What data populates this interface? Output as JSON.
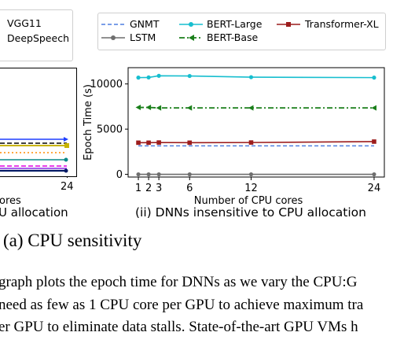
{
  "left_legend": {
    "entries": [
      "VGG11",
      "DeepSpeech"
    ]
  },
  "left_panel": {
    "xtick": "24",
    "xlabel_fragment": "ores",
    "caption_fragment": "U allocation"
  },
  "right_legend": {
    "entries": [
      {
        "label": "GNMT",
        "color": "#4f7fe0",
        "style": "dashed"
      },
      {
        "label": "LSTM",
        "color": "#6e6e6e",
        "style": "solid-dot"
      },
      {
        "label": "BERT-Large",
        "color": "#17becf",
        "style": "solid-dot"
      },
      {
        "label": "BERT-Base",
        "color": "#1a7f1a",
        "style": "dashdot-triangle"
      },
      {
        "label": "Transformer-XL",
        "color": "#9c1c1c",
        "style": "solid-square"
      }
    ]
  },
  "chart_data": {
    "type": "line",
    "title": "",
    "xlabel": "Number of CPU cores",
    "ylabel": "Epoch Time (s)",
    "x": [
      1,
      2,
      3,
      6,
      12,
      24
    ],
    "xticks": [
      1,
      2,
      3,
      6,
      12,
      24
    ],
    "xlim": [
      0,
      25
    ],
    "ylim": [
      -300,
      11800
    ],
    "yticks": [
      0,
      5000,
      10000
    ],
    "grid": false,
    "series": [
      {
        "name": "GNMT",
        "color": "#4f7fe0",
        "values": [
          3150,
          3150,
          3150,
          3150,
          3150,
          3150
        ]
      },
      {
        "name": "LSTM",
        "color": "#6e6e6e",
        "values": [
          0,
          0,
          0,
          0,
          0,
          0
        ]
      },
      {
        "name": "BERT-Large",
        "color": "#17becf",
        "values": [
          10700,
          10720,
          10900,
          10880,
          10750,
          10700
        ]
      },
      {
        "name": "BERT-Base",
        "color": "#1a7f1a",
        "values": [
          7400,
          7400,
          7350,
          7350,
          7350,
          7350
        ]
      },
      {
        "name": "Transformer-XL",
        "color": "#9c1c1c",
        "values": [
          3500,
          3500,
          3520,
          3500,
          3520,
          3620
        ]
      }
    ]
  },
  "right_caption": "(ii) DNNs insensitive to CPU allocation",
  "subfigure_caption": "(a) CPU sensitivity",
  "body_text": [
    "graph plots the epoch time for DNNs as we vary the CPU:G",
    "need as few as 1 CPU core per GPU to achieve maximum tra",
    "er GPU to eliminate data stalls. State-of-the-art GPU VMs h"
  ]
}
